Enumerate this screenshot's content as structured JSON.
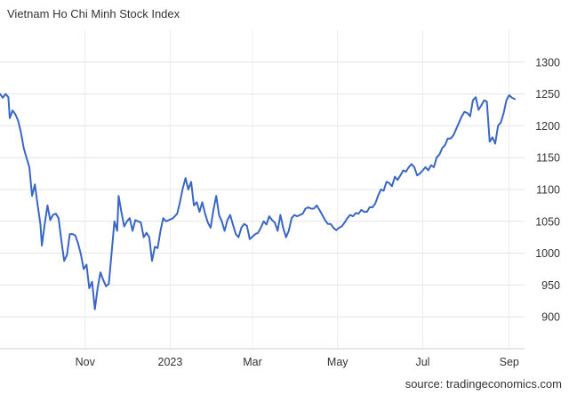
{
  "chart_data": {
    "type": "line",
    "title": "Vietnam Ho Chi Minh Stock Index",
    "source": "source: tradingeconomics.com",
    "xlabel": "",
    "ylabel": "",
    "ylim": [
      850,
      1350
    ],
    "yticks": [
      900,
      950,
      1000,
      1050,
      1100,
      1150,
      1200,
      1250,
      1300
    ],
    "xlim": [
      "2022-09-01",
      "2023-09-12"
    ],
    "xticks": [
      {
        "label": "Nov",
        "date": "2022-11-01"
      },
      {
        "label": "2023",
        "date": "2023-01-01"
      },
      {
        "label": "Mar",
        "date": "2023-03-01"
      },
      {
        "label": "May",
        "date": "2023-05-01"
      },
      {
        "label": "Jul",
        "date": "2023-07-01"
      },
      {
        "label": "Sep",
        "date": "2023-09-01"
      }
    ],
    "grid": true,
    "legend": "none",
    "series": [
      {
        "color": "#3a66c4",
        "points": [
          [
            "2022-09-01",
            1250
          ],
          [
            "2022-09-03",
            1244
          ],
          [
            "2022-09-05",
            1250
          ],
          [
            "2022-09-07",
            1245
          ],
          [
            "2022-09-08",
            1212
          ],
          [
            "2022-09-10",
            1224
          ],
          [
            "2022-09-12",
            1218
          ],
          [
            "2022-09-14",
            1208
          ],
          [
            "2022-09-16",
            1190
          ],
          [
            "2022-09-18",
            1165
          ],
          [
            "2022-09-20",
            1150
          ],
          [
            "2022-09-22",
            1135
          ],
          [
            "2022-09-24",
            1090
          ],
          [
            "2022-09-26",
            1108
          ],
          [
            "2022-09-28",
            1075
          ],
          [
            "2022-09-30",
            1045
          ],
          [
            "2022-10-01",
            1012
          ],
          [
            "2022-10-03",
            1045
          ],
          [
            "2022-10-05",
            1075
          ],
          [
            "2022-10-07",
            1052
          ],
          [
            "2022-10-09",
            1060
          ],
          [
            "2022-10-11",
            1062
          ],
          [
            "2022-10-13",
            1055
          ],
          [
            "2022-10-15",
            1020
          ],
          [
            "2022-10-17",
            988
          ],
          [
            "2022-10-19",
            997
          ],
          [
            "2022-10-21",
            1030
          ],
          [
            "2022-10-23",
            1030
          ],
          [
            "2022-10-25",
            1028
          ],
          [
            "2022-10-27",
            1015
          ],
          [
            "2022-10-29",
            998
          ],
          [
            "2022-10-31",
            975
          ],
          [
            "2022-11-02",
            982
          ],
          [
            "2022-11-04",
            945
          ],
          [
            "2022-11-06",
            955
          ],
          [
            "2022-11-08",
            912
          ],
          [
            "2022-11-10",
            945
          ],
          [
            "2022-11-12",
            970
          ],
          [
            "2022-11-14",
            958
          ],
          [
            "2022-11-16",
            948
          ],
          [
            "2022-11-18",
            952
          ],
          [
            "2022-11-20",
            1000
          ],
          [
            "2022-11-22",
            1050
          ],
          [
            "2022-11-24",
            1035
          ],
          [
            "2022-11-25",
            1090
          ],
          [
            "2022-11-27",
            1065
          ],
          [
            "2022-11-29",
            1042
          ],
          [
            "2022-12-01",
            1050
          ],
          [
            "2022-12-03",
            1055
          ],
          [
            "2022-12-05",
            1035
          ],
          [
            "2022-12-07",
            1052
          ],
          [
            "2022-12-09",
            1050
          ],
          [
            "2022-12-11",
            1048
          ],
          [
            "2022-12-13",
            1025
          ],
          [
            "2022-12-15",
            1032
          ],
          [
            "2022-12-17",
            1025
          ],
          [
            "2022-12-19",
            988
          ],
          [
            "2022-12-21",
            1010
          ],
          [
            "2022-12-23",
            1008
          ],
          [
            "2022-12-25",
            1035
          ],
          [
            "2022-12-27",
            1055
          ],
          [
            "2022-12-29",
            1050
          ],
          [
            "2022-12-31",
            1052
          ],
          [
            "2023-01-03",
            1055
          ],
          [
            "2023-01-06",
            1062
          ],
          [
            "2023-01-08",
            1080
          ],
          [
            "2023-01-10",
            1102
          ],
          [
            "2023-01-12",
            1118
          ],
          [
            "2023-01-14",
            1100
          ],
          [
            "2023-01-16",
            1112
          ],
          [
            "2023-01-18",
            1075
          ],
          [
            "2023-01-20",
            1080
          ],
          [
            "2023-01-22",
            1065
          ],
          [
            "2023-01-24",
            1080
          ],
          [
            "2023-01-26",
            1062
          ],
          [
            "2023-01-28",
            1048
          ],
          [
            "2023-01-30",
            1040
          ],
          [
            "2023-02-01",
            1068
          ],
          [
            "2023-02-03",
            1090
          ],
          [
            "2023-02-05",
            1060
          ],
          [
            "2023-02-07",
            1050
          ],
          [
            "2023-02-09",
            1035
          ],
          [
            "2023-02-11",
            1052
          ],
          [
            "2023-02-13",
            1060
          ],
          [
            "2023-02-15",
            1045
          ],
          [
            "2023-02-17",
            1030
          ],
          [
            "2023-02-19",
            1025
          ],
          [
            "2023-02-21",
            1040
          ],
          [
            "2023-02-23",
            1046
          ],
          [
            "2023-02-25",
            1043
          ],
          [
            "2023-02-27",
            1022
          ],
          [
            "2023-03-01",
            1026
          ],
          [
            "2023-03-03",
            1030
          ],
          [
            "2023-03-05",
            1032
          ],
          [
            "2023-03-07",
            1040
          ],
          [
            "2023-03-09",
            1050
          ],
          [
            "2023-03-11",
            1045
          ],
          [
            "2023-03-13",
            1058
          ],
          [
            "2023-03-15",
            1052
          ],
          [
            "2023-03-17",
            1048
          ],
          [
            "2023-03-19",
            1035
          ],
          [
            "2023-03-21",
            1060
          ],
          [
            "2023-03-23",
            1040
          ],
          [
            "2023-03-25",
            1025
          ],
          [
            "2023-03-27",
            1035
          ],
          [
            "2023-03-29",
            1055
          ],
          [
            "2023-03-31",
            1060
          ],
          [
            "2023-04-02",
            1058
          ],
          [
            "2023-04-04",
            1060
          ],
          [
            "2023-04-06",
            1062
          ],
          [
            "2023-04-08",
            1070
          ],
          [
            "2023-04-10",
            1072
          ],
          [
            "2023-04-12",
            1070
          ],
          [
            "2023-04-14",
            1070
          ],
          [
            "2023-04-16",
            1075
          ],
          [
            "2023-04-18",
            1068
          ],
          [
            "2023-04-20",
            1060
          ],
          [
            "2023-04-22",
            1052
          ],
          [
            "2023-04-24",
            1046
          ],
          [
            "2023-04-26",
            1046
          ],
          [
            "2023-04-28",
            1040
          ],
          [
            "2023-04-30",
            1036
          ],
          [
            "2023-05-02",
            1040
          ],
          [
            "2023-05-04",
            1042
          ],
          [
            "2023-05-06",
            1048
          ],
          [
            "2023-05-08",
            1055
          ],
          [
            "2023-05-10",
            1060
          ],
          [
            "2023-05-12",
            1058
          ],
          [
            "2023-05-14",
            1063
          ],
          [
            "2023-05-16",
            1062
          ],
          [
            "2023-05-18",
            1068
          ],
          [
            "2023-05-20",
            1065
          ],
          [
            "2023-05-22",
            1065
          ],
          [
            "2023-05-24",
            1072
          ],
          [
            "2023-05-26",
            1072
          ],
          [
            "2023-05-28",
            1078
          ],
          [
            "2023-05-30",
            1090
          ],
          [
            "2023-06-01",
            1100
          ],
          [
            "2023-06-03",
            1098
          ],
          [
            "2023-06-05",
            1112
          ],
          [
            "2023-06-07",
            1110
          ],
          [
            "2023-06-09",
            1105
          ],
          [
            "2023-06-11",
            1120
          ],
          [
            "2023-06-13",
            1115
          ],
          [
            "2023-06-15",
            1122
          ],
          [
            "2023-06-17",
            1130
          ],
          [
            "2023-06-19",
            1128
          ],
          [
            "2023-06-21",
            1135
          ],
          [
            "2023-06-23",
            1140
          ],
          [
            "2023-06-25",
            1135
          ],
          [
            "2023-06-27",
            1122
          ],
          [
            "2023-06-29",
            1125
          ],
          [
            "2023-07-01",
            1130
          ],
          [
            "2023-07-03",
            1135
          ],
          [
            "2023-07-05",
            1130
          ],
          [
            "2023-07-07",
            1138
          ],
          [
            "2023-07-09",
            1135
          ],
          [
            "2023-07-11",
            1150
          ],
          [
            "2023-07-13",
            1155
          ],
          [
            "2023-07-15",
            1165
          ],
          [
            "2023-07-17",
            1170
          ],
          [
            "2023-07-19",
            1180
          ],
          [
            "2023-07-21",
            1180
          ],
          [
            "2023-07-23",
            1185
          ],
          [
            "2023-07-25",
            1195
          ],
          [
            "2023-07-27",
            1205
          ],
          [
            "2023-07-29",
            1215
          ],
          [
            "2023-07-31",
            1222
          ],
          [
            "2023-08-02",
            1220
          ],
          [
            "2023-08-04",
            1215
          ],
          [
            "2023-08-06",
            1240
          ],
          [
            "2023-08-08",
            1245
          ],
          [
            "2023-08-10",
            1225
          ],
          [
            "2023-08-12",
            1232
          ],
          [
            "2023-08-14",
            1240
          ],
          [
            "2023-08-16",
            1238
          ],
          [
            "2023-08-18",
            1175
          ],
          [
            "2023-08-20",
            1182
          ],
          [
            "2023-08-22",
            1172
          ],
          [
            "2023-08-24",
            1200
          ],
          [
            "2023-08-26",
            1205
          ],
          [
            "2023-08-28",
            1220
          ],
          [
            "2023-08-30",
            1240
          ],
          [
            "2023-09-01",
            1248
          ],
          [
            "2023-09-03",
            1244
          ],
          [
            "2023-09-05",
            1242
          ]
        ]
      }
    ]
  }
}
